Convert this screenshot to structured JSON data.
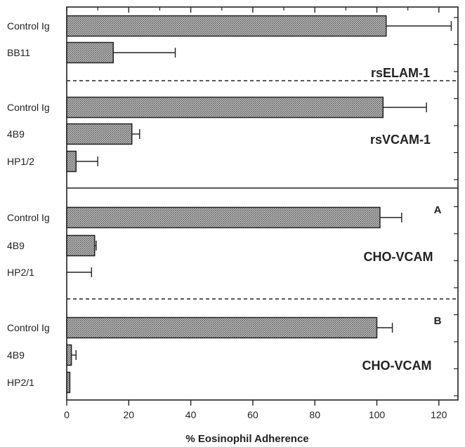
{
  "chart_data": {
    "type": "bar",
    "orientation": "horizontal",
    "xlabel": "% Eosinophil Adherence",
    "xlim": [
      0,
      130
    ],
    "xticks": [
      0,
      20,
      40,
      60,
      80,
      100,
      120
    ],
    "grid": false,
    "bar_color": "#9a9a9a",
    "panels": [
      {
        "title": "rsELAM-1",
        "letter": "",
        "categories": [
          "Control Ig",
          "BB11"
        ],
        "values": [
          103,
          15
        ],
        "errors": [
          21,
          20
        ]
      },
      {
        "title": "rsVCAM-1",
        "letter": "",
        "categories": [
          "Control Ig",
          "4B9",
          "HP1/2"
        ],
        "values": [
          102,
          21,
          3
        ],
        "errors": [
          14,
          2.5,
          7
        ]
      },
      {
        "title": "CHO-VCAM",
        "letter": "A",
        "categories": [
          "Control Ig",
          "4B9",
          "HP2/1"
        ],
        "values": [
          101,
          9,
          0
        ],
        "errors": [
          7,
          0.5,
          8
        ]
      },
      {
        "title": "CHO-VCAM",
        "letter": "B",
        "categories": [
          "Control Ig",
          "4B9",
          "HP2/1"
        ],
        "values": [
          100,
          1.5,
          1
        ],
        "errors": [
          5,
          1.5,
          0
        ]
      }
    ]
  }
}
